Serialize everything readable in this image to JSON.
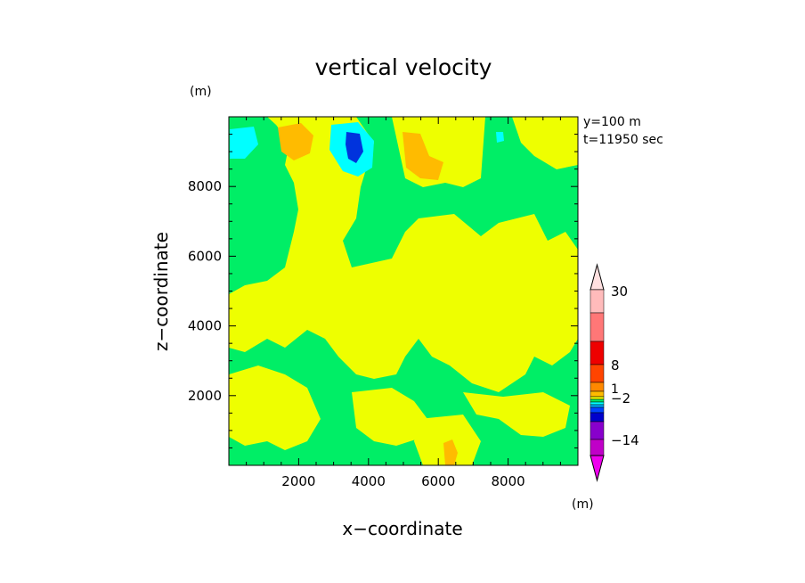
{
  "chart_data": {
    "type": "heatmap",
    "title": "vertical velocity",
    "xlabel": "x−coordinate",
    "ylabel": "z−coordinate",
    "z_unit": "(m)",
    "x_unit": "(m)",
    "annotations": [
      "y=100 m",
      "t=11950 sec"
    ],
    "xlim": [
      0,
      10000
    ],
    "ylim": [
      0,
      10000
    ],
    "x_ticks": [
      {
        "value": 2000,
        "label": "2000"
      },
      {
        "value": 4000,
        "label": "4000"
      },
      {
        "value": 6000,
        "label": "6000"
      },
      {
        "value": 8000,
        "label": "8000"
      }
    ],
    "y_ticks": [
      {
        "value": 2000,
        "label": "2000"
      },
      {
        "value": 4000,
        "label": "4000"
      },
      {
        "value": 6000,
        "label": "6000"
      },
      {
        "value": 8000,
        "label": "8000"
      }
    ],
    "colorbar": {
      "levels": [
        "-20",
        "-14",
        "-8",
        "-4",
        "-2",
        "-1",
        "-0.5",
        "0",
        "0.5",
        "1",
        "2",
        "4",
        "8",
        "15",
        "22",
        "30"
      ],
      "labeled_levels": [
        "30",
        "8",
        "1",
        "−2",
        "−14"
      ],
      "colors": [
        "#ee00ee",
        "#c000c8",
        "#8800cc",
        "#0000cc",
        "#0044ff",
        "#00aaff",
        "#00ffff",
        "#00ee66",
        "#eeff00",
        "#ffbb00",
        "#ff8800",
        "#ff4400",
        "#ee0000",
        "#ff7777",
        "#ffbbbb",
        "#ffe0e0"
      ]
    },
    "regions": [
      {
        "value": 0.2,
        "desc": "positive weak (yellow)"
      },
      {
        "value": -0.2,
        "desc": "negative weak (green)"
      }
    ]
  }
}
